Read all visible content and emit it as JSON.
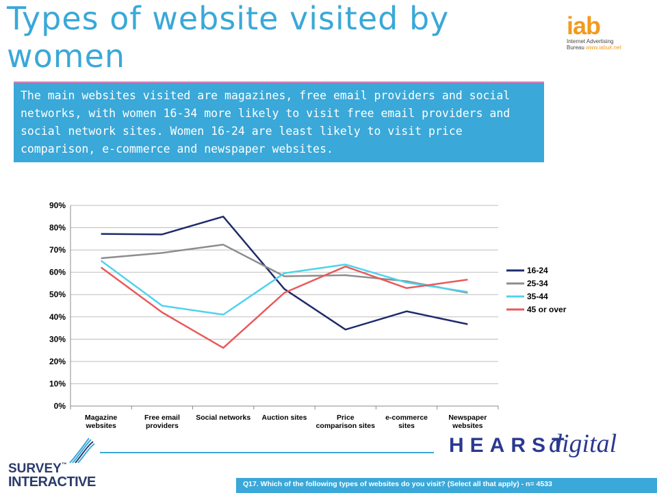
{
  "slide": {
    "title": "Types of website visited by women",
    "summary": "The main websites visited are magazines, free email providers and social networks, with women 16-34 more likely to visit free email providers and social network sites. Women 16-24 are least likely to visit price comparison, e-commerce and newspaper websites.",
    "footnote": "Q17. Which of the following types of websites do you visit? (Select all that apply) - n= 4533"
  },
  "logos": {
    "iab_mark": "iab",
    "iab_line1": "Internet Advertising",
    "iab_line2": "Bureau",
    "iab_url": "www.iabuk.net",
    "hearst_word1": "HEARST",
    "hearst_word2": "digital",
    "survey_word1": "SURVEY",
    "survey_word2": "INTERACTIVE",
    "survey_tm": "™"
  },
  "colors": {
    "accent": "#3aa8d8",
    "summary_border": "#e97ab6"
  },
  "chart_data": {
    "type": "line",
    "categories": [
      [
        "Magazine",
        "websites"
      ],
      [
        "Free email",
        "providers"
      ],
      [
        "Social networks"
      ],
      [
        "Auction sites"
      ],
      [
        "Price",
        "comparison sites"
      ],
      [
        "e-commerce",
        "sites"
      ],
      [
        "Newspaper",
        "websites"
      ]
    ],
    "y_ticks": [
      "0%",
      "10%",
      "20%",
      "30%",
      "40%",
      "50%",
      "60%",
      "70%",
      "80%",
      "90%"
    ],
    "ylim": [
      0,
      90
    ],
    "grid": true,
    "legend_position": "right",
    "series": [
      {
        "name": "16-24",
        "color": "#1f2a6b",
        "values": [
          77.2,
          77,
          85,
          52.5,
          34.3,
          42.5,
          36.7
        ]
      },
      {
        "name": "25-34",
        "color": "#8c8c8c",
        "values": [
          66.3,
          68.7,
          72.4,
          58.2,
          58.7,
          56,
          50.8
        ]
      },
      {
        "name": "35-44",
        "color": "#4fd2ee",
        "values": [
          65.2,
          45,
          41,
          59.6,
          63.5,
          55.4,
          51.2
        ]
      },
      {
        "name": "45 or over",
        "color": "#e8595a",
        "values": [
          62.2,
          42,
          26.1,
          50.8,
          62.6,
          52.9,
          56.7
        ]
      }
    ]
  }
}
